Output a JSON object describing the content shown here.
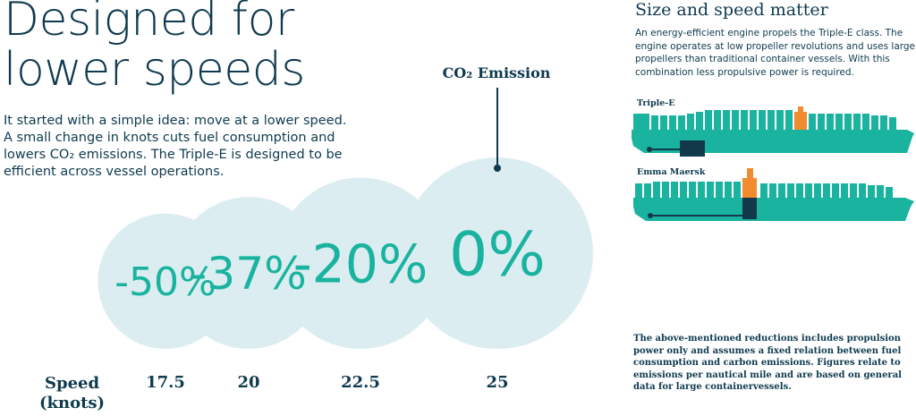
{
  "headline": [
    "Designed for",
    "lower speeds"
  ],
  "intro": [
    "It started with a simple idea: move at a lower speed.",
    "A small change in knots cuts fuel consumption and",
    "lowers CO₂ emissions. The Triple-E is designed to be",
    "efficient across vessel operations."
  ],
  "speed_label": [
    "Speed",
    "(knots)"
  ],
  "side": {
    "heading": "Size and speed matter",
    "text": [
      "An energy-efficient engine propels the Triple-E class. The",
      "engine operates at low propeller revolutions and uses larger",
      "propellers than traditional container vessels. With this",
      "combination less propulsive power is required."
    ],
    "ship_labels": [
      "Triple-E",
      "Emma Maersk"
    ],
    "note": [
      "The above-mentioned reductions includes propulsion",
      "power only and assumes a fixed relation between fuel",
      "consumption and carbon emissions. Figures relate to",
      "emissions per nautical mile and are based on general",
      "data for large containervessels."
    ]
  },
  "colors": {
    "navy": "#0e3a4f",
    "teal": "#1ab3a0",
    "bubble": "#dcedf1",
    "orange": "#f08c2d",
    "dark_block": "#12394a"
  },
  "chart_data": {
    "type": "bubble",
    "title": "CO₂ Emission",
    "xlabel": "Speed (knots)",
    "categories": [
      "17.5",
      "20",
      "22.5",
      "25"
    ],
    "series": [
      {
        "name": "CO₂ Emission",
        "values": [
          -50,
          -37,
          -20,
          0
        ]
      }
    ],
    "value_labels": [
      "-50%",
      "-37%",
      "-20%",
      "0%"
    ],
    "grid": false
  }
}
